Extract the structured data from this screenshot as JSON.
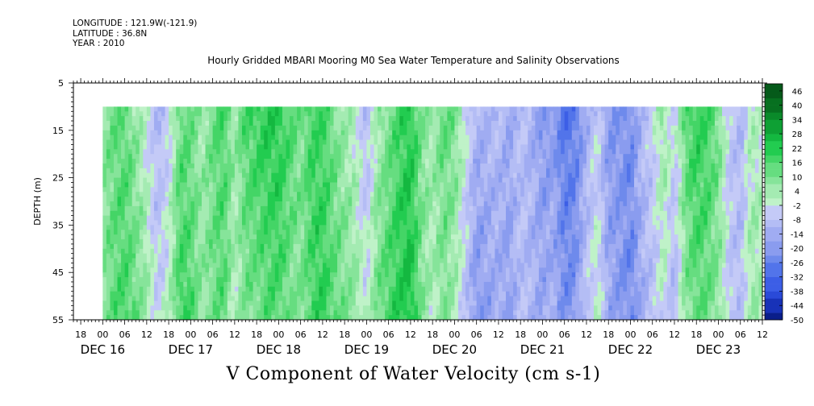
{
  "header": {
    "longitude": "LONGITUDE : 121.9W(-121.9)",
    "latitude": "LATITUDE : 36.8N",
    "year": "YEAR : 2010",
    "title": "Hourly Gridded MBARI Mooring M0 Sea Water Temperature and Salinity Observations"
  },
  "chart_data": {
    "type": "heatmap",
    "title": "V Component of Water Velocity (cm s-1)",
    "ylabel": "DEPTH (m)",
    "ylim": [
      55,
      5
    ],
    "y_ticks": [
      "5",
      "15",
      "25",
      "35",
      "45",
      "55"
    ],
    "y_tick_values": [
      5,
      15,
      25,
      35,
      45,
      55
    ],
    "x_hour_ticks": [
      "18",
      "00",
      "06",
      "12",
      "18",
      "00",
      "06",
      "12",
      "18",
      "00",
      "06",
      "12",
      "18",
      "00",
      "06",
      "12",
      "18",
      "00",
      "06",
      "12",
      "18",
      "00",
      "06",
      "12",
      "18",
      "00",
      "06",
      "12",
      "18",
      "00",
      "06",
      "12"
    ],
    "x_day_labels": [
      "DEC 16",
      "DEC 17",
      "DEC 18",
      "DEC 19",
      "DEC 20",
      "DEC 21",
      "DEC 22",
      "DEC 23"
    ],
    "x_range_hours": [
      -8,
      180
    ],
    "data_start_hour": 0,
    "data_depth_range": [
      10,
      55
    ],
    "colorbar_labels": [
      "46",
      "40",
      "34",
      "28",
      "22",
      "16",
      "10",
      "4",
      "-2",
      "-8",
      "-14",
      "-20",
      "-26",
      "-32",
      "-38",
      "-44",
      "-50"
    ],
    "colorbar_levels": [
      -50,
      -47,
      -44,
      -41,
      -38,
      -35,
      -32,
      -29,
      -26,
      -23,
      -20,
      -17,
      -14,
      -11,
      -8,
      -5,
      -2,
      1,
      4,
      7,
      10,
      13,
      16,
      19,
      22,
      25,
      28,
      31,
      34,
      37,
      40,
      43,
      46,
      49
    ],
    "colors": {
      "neg": [
        "#0a1e8a",
        "#1832b8",
        "#2a4ad8",
        "#3c5ee6",
        "#5274ea",
        "#6e8aec",
        "#8a9cef",
        "#a0acf2",
        "#b4bdf5",
        "#c4caf7"
      ],
      "pos": [
        "#bff2c8",
        "#a4ebb2",
        "#86e49a",
        "#66dd80",
        "#44d566",
        "#22cc50",
        "#14b840",
        "#0ea034",
        "#0a8a2a",
        "#077020",
        "#055a1a"
      ]
    },
    "v_profile_hours": [
      0,
      3,
      6,
      9,
      12,
      15,
      18,
      21,
      24,
      27,
      30,
      33,
      36,
      39,
      42,
      45,
      48,
      51,
      54,
      57,
      60,
      63,
      66,
      69,
      72,
      75,
      78,
      81,
      84,
      87,
      90,
      93,
      96,
      99,
      102,
      105,
      108,
      111,
      114,
      117,
      120,
      123,
      126,
      129,
      132,
      135,
      138,
      141,
      144,
      147,
      150,
      153,
      156,
      159,
      162,
      165,
      168,
      171,
      174,
      177,
      180
    ],
    "v_profile_values": [
      8,
      14,
      16,
      10,
      2,
      -8,
      -2,
      16,
      15,
      6,
      12,
      17,
      4,
      14,
      16,
      19,
      20,
      14,
      10,
      18,
      20,
      13,
      8,
      4,
      -6,
      8,
      14,
      20,
      24,
      10,
      4,
      12,
      8,
      -4,
      -16,
      -14,
      -12,
      -16,
      -8,
      -12,
      -18,
      -16,
      -26,
      -24,
      -10,
      -2,
      -18,
      -20,
      -24,
      -12,
      -6,
      4,
      -8,
      12,
      18,
      16,
      10,
      -6,
      -10,
      4,
      2
    ]
  }
}
